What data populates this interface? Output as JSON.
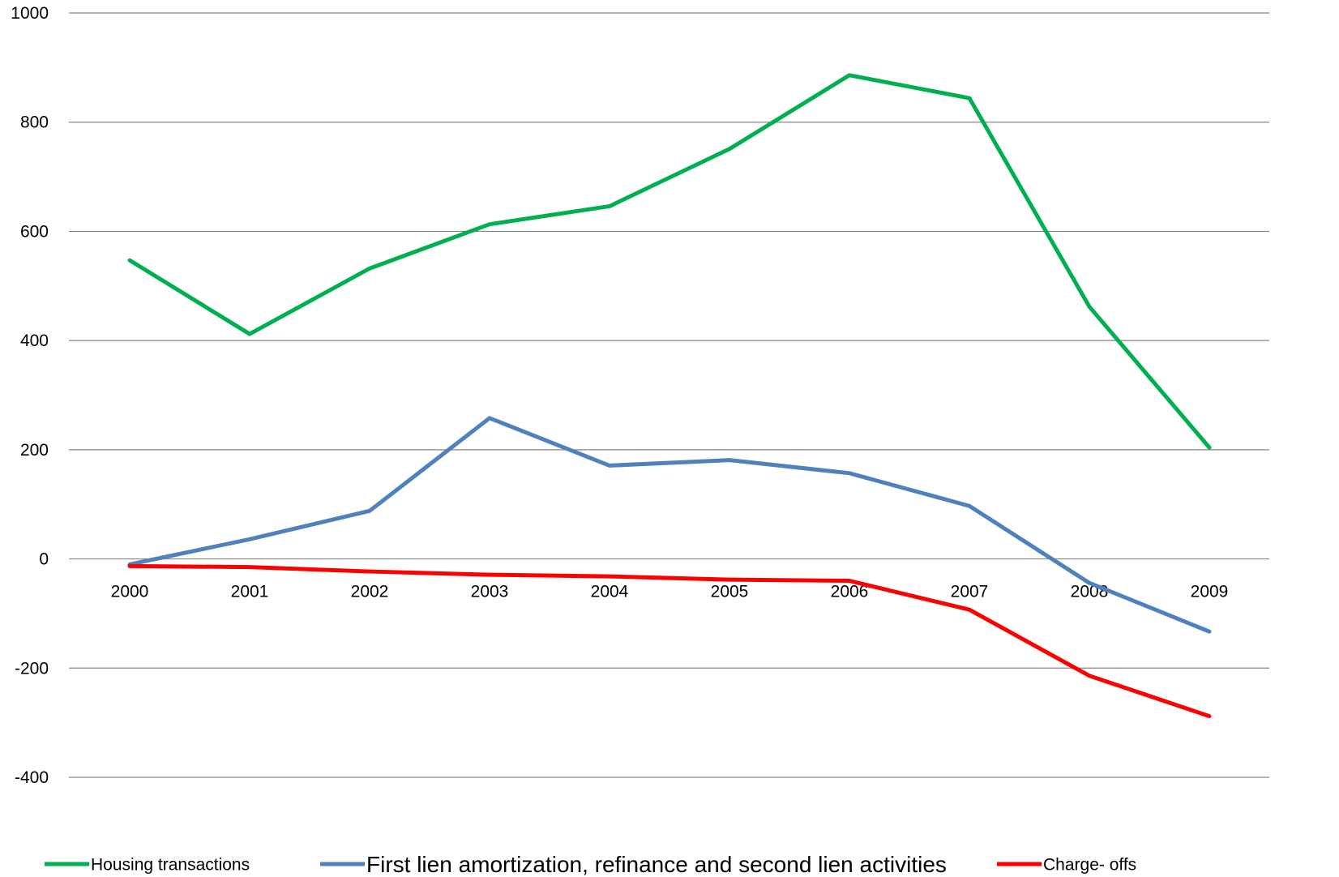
{
  "chart_data": {
    "type": "line",
    "title": "",
    "xlabel": "",
    "ylabel": "",
    "categories": [
      "2000",
      "2001",
      "2002",
      "2003",
      "2004",
      "2005",
      "2006",
      "2007",
      "2008",
      "2009"
    ],
    "ylim": [
      -400,
      1000
    ],
    "yticks": [
      "-400",
      "-200",
      "0",
      "200",
      "400",
      "600",
      "800",
      "1000"
    ],
    "grid": true,
    "legend_position": "bottom",
    "series": [
      {
        "name": "Housing transactions",
        "color": "#00b050",
        "values": [
          547,
          412,
          532,
          613,
          646,
          751,
          886,
          844,
          462,
          204
        ]
      },
      {
        "name": "First lien amortization, refinance and second lien activities",
        "color": "#4f81bd",
        "values": [
          -10,
          36,
          88,
          258,
          171,
          181,
          157,
          97,
          -44,
          -133
        ]
      },
      {
        "name": "Charge- offs",
        "color": "#ff0000",
        "values": [
          -13,
          -15,
          -23,
          -29,
          -32,
          -38,
          -40,
          -93,
          -214,
          -288
        ]
      }
    ]
  }
}
